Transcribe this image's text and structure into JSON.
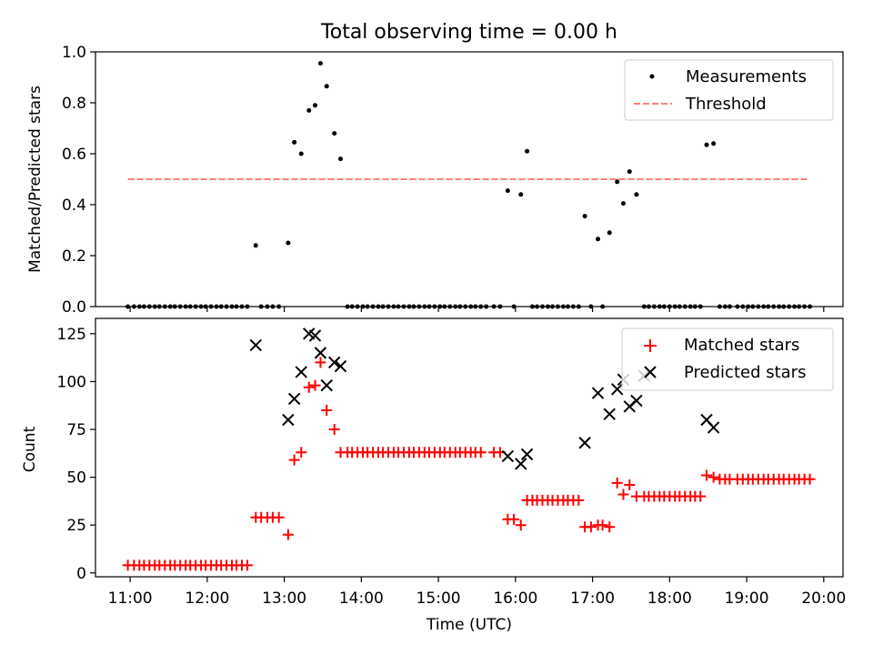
{
  "chart_data": [
    {
      "type": "scatter",
      "title": "Total observing time = 0.00 h",
      "xlabel": "",
      "ylabel": "Matched/Predicted stars",
      "ylim": [
        0.0,
        1.0
      ],
      "yticks": [
        "0.0",
        "0.2",
        "0.4",
        "0.6",
        "0.8",
        "1.0"
      ],
      "legend_position": "top-right",
      "series": [
        {
          "name": "Measurements",
          "kind": "points",
          "color": "#000000",
          "points": [
            [
              10.97,
              0
            ],
            [
              11.05,
              0
            ],
            [
              11.12,
              0
            ],
            [
              11.18,
              0
            ],
            [
              11.25,
              0
            ],
            [
              11.32,
              0
            ],
            [
              11.38,
              0
            ],
            [
              11.45,
              0
            ],
            [
              11.52,
              0
            ],
            [
              11.58,
              0
            ],
            [
              11.65,
              0
            ],
            [
              11.72,
              0
            ],
            [
              11.78,
              0
            ],
            [
              11.85,
              0
            ],
            [
              11.92,
              0
            ],
            [
              11.98,
              0
            ],
            [
              12.05,
              0
            ],
            [
              12.12,
              0
            ],
            [
              12.18,
              0
            ],
            [
              12.25,
              0
            ],
            [
              12.32,
              0
            ],
            [
              12.38,
              0
            ],
            [
              12.45,
              0
            ],
            [
              12.52,
              0
            ],
            [
              12.63,
              0.24
            ],
            [
              12.7,
              0
            ],
            [
              12.78,
              0
            ],
            [
              12.85,
              0
            ],
            [
              12.93,
              0
            ],
            [
              13.05,
              0.25
            ],
            [
              13.13,
              0.645
            ],
            [
              13.22,
              0.6
            ],
            [
              13.32,
              0.77
            ],
            [
              13.4,
              0.79
            ],
            [
              13.47,
              0.955
            ],
            [
              13.55,
              0.865
            ],
            [
              13.65,
              0.68
            ],
            [
              13.73,
              0.58
            ],
            [
              13.82,
              0
            ],
            [
              13.88,
              0
            ],
            [
              13.95,
              0
            ],
            [
              14.02,
              0
            ],
            [
              14.08,
              0
            ],
            [
              14.15,
              0
            ],
            [
              14.22,
              0
            ],
            [
              14.28,
              0
            ],
            [
              14.35,
              0
            ],
            [
              14.42,
              0
            ],
            [
              14.48,
              0
            ],
            [
              14.55,
              0
            ],
            [
              14.62,
              0
            ],
            [
              14.68,
              0
            ],
            [
              14.75,
              0
            ],
            [
              14.82,
              0
            ],
            [
              14.88,
              0
            ],
            [
              14.95,
              0
            ],
            [
              15.02,
              0
            ],
            [
              15.08,
              0
            ],
            [
              15.15,
              0
            ],
            [
              15.22,
              0
            ],
            [
              15.28,
              0
            ],
            [
              15.35,
              0
            ],
            [
              15.42,
              0
            ],
            [
              15.48,
              0
            ],
            [
              15.55,
              0
            ],
            [
              15.62,
              0
            ],
            [
              15.72,
              0
            ],
            [
              15.8,
              0
            ],
            [
              15.9,
              0.455
            ],
            [
              15.98,
              0
            ],
            [
              16.07,
              0.44
            ],
            [
              16.15,
              0.61
            ],
            [
              16.22,
              0
            ],
            [
              16.28,
              0
            ],
            [
              16.35,
              0
            ],
            [
              16.42,
              0
            ],
            [
              16.48,
              0
            ],
            [
              16.55,
              0
            ],
            [
              16.62,
              0
            ],
            [
              16.68,
              0
            ],
            [
              16.75,
              0
            ],
            [
              16.82,
              0
            ],
            [
              16.9,
              0.355
            ],
            [
              16.98,
              0
            ],
            [
              17.07,
              0.265
            ],
            [
              17.13,
              0
            ],
            [
              17.22,
              0.29
            ],
            [
              17.32,
              0.49
            ],
            [
              17.4,
              0.405
            ],
            [
              17.48,
              0.53
            ],
            [
              17.57,
              0.44
            ],
            [
              17.67,
              0
            ],
            [
              17.73,
              0
            ],
            [
              17.8,
              0
            ],
            [
              17.87,
              0
            ],
            [
              17.93,
              0
            ],
            [
              18.0,
              0
            ],
            [
              18.07,
              0
            ],
            [
              18.13,
              0
            ],
            [
              18.2,
              0
            ],
            [
              18.27,
              0
            ],
            [
              18.33,
              0
            ],
            [
              18.4,
              0
            ],
            [
              18.48,
              0.635
            ],
            [
              18.57,
              0.64
            ],
            [
              18.65,
              0
            ],
            [
              18.72,
              0
            ],
            [
              18.78,
              0
            ],
            [
              18.88,
              0
            ],
            [
              18.95,
              0
            ],
            [
              19.02,
              0
            ],
            [
              19.08,
              0
            ],
            [
              19.15,
              0
            ],
            [
              19.22,
              0
            ],
            [
              19.28,
              0
            ],
            [
              19.35,
              0
            ],
            [
              19.42,
              0
            ],
            [
              19.48,
              0
            ],
            [
              19.55,
              0
            ],
            [
              19.62,
              0
            ],
            [
              19.68,
              0
            ],
            [
              19.75,
              0
            ],
            [
              19.82,
              0
            ]
          ]
        },
        {
          "name": "Threshold",
          "kind": "dashed-line",
          "color": "#ff7f7f",
          "x": [
            10.97,
            19.82
          ],
          "y": [
            0.5,
            0.5
          ]
        }
      ]
    },
    {
      "type": "scatter",
      "title": "",
      "xlabel": "Time (UTC)",
      "ylabel": "Count",
      "ylim": [
        -2,
        133
      ],
      "yticks": [
        "0",
        "25",
        "50",
        "75",
        "100",
        "125"
      ],
      "xlim": [
        10.55,
        20.25
      ],
      "xticks": [
        "11:00",
        "12:00",
        "13:00",
        "14:00",
        "15:00",
        "16:00",
        "17:00",
        "18:00",
        "19:00",
        "20:00"
      ],
      "legend_position": "top-right",
      "series": [
        {
          "name": "Matched stars",
          "kind": "plus",
          "color": "#ff0000",
          "points": [
            [
              10.97,
              4
            ],
            [
              11.05,
              4
            ],
            [
              11.12,
              4
            ],
            [
              11.18,
              4
            ],
            [
              11.25,
              4
            ],
            [
              11.32,
              4
            ],
            [
              11.38,
              4
            ],
            [
              11.45,
              4
            ],
            [
              11.52,
              4
            ],
            [
              11.58,
              4
            ],
            [
              11.65,
              4
            ],
            [
              11.72,
              4
            ],
            [
              11.78,
              4
            ],
            [
              11.85,
              4
            ],
            [
              11.92,
              4
            ],
            [
              11.98,
              4
            ],
            [
              12.05,
              4
            ],
            [
              12.12,
              4
            ],
            [
              12.18,
              4
            ],
            [
              12.25,
              4
            ],
            [
              12.32,
              4
            ],
            [
              12.38,
              4
            ],
            [
              12.45,
              4
            ],
            [
              12.52,
              4
            ],
            [
              12.63,
              29
            ],
            [
              12.7,
              29
            ],
            [
              12.78,
              29
            ],
            [
              12.85,
              29
            ],
            [
              12.93,
              29
            ],
            [
              13.05,
              20
            ],
            [
              13.13,
              59
            ],
            [
              13.22,
              63
            ],
            [
              13.32,
              97
            ],
            [
              13.4,
              98
            ],
            [
              13.47,
              110
            ],
            [
              13.55,
              85
            ],
            [
              13.65,
              75
            ],
            [
              13.73,
              63
            ],
            [
              13.82,
              63
            ],
            [
              13.88,
              63
            ],
            [
              13.95,
              63
            ],
            [
              14.02,
              63
            ],
            [
              14.08,
              63
            ],
            [
              14.15,
              63
            ],
            [
              14.22,
              63
            ],
            [
              14.28,
              63
            ],
            [
              14.35,
              63
            ],
            [
              14.42,
              63
            ],
            [
              14.48,
              63
            ],
            [
              14.55,
              63
            ],
            [
              14.62,
              63
            ],
            [
              14.68,
              63
            ],
            [
              14.75,
              63
            ],
            [
              14.82,
              63
            ],
            [
              14.88,
              63
            ],
            [
              14.95,
              63
            ],
            [
              15.02,
              63
            ],
            [
              15.08,
              63
            ],
            [
              15.15,
              63
            ],
            [
              15.22,
              63
            ],
            [
              15.28,
              63
            ],
            [
              15.35,
              63
            ],
            [
              15.42,
              63
            ],
            [
              15.48,
              63
            ],
            [
              15.55,
              63
            ],
            [
              15.72,
              63
            ],
            [
              15.8,
              63
            ],
            [
              15.9,
              28
            ],
            [
              15.98,
              28
            ],
            [
              16.07,
              25
            ],
            [
              16.15,
              38
            ],
            [
              16.22,
              38
            ],
            [
              16.28,
              38
            ],
            [
              16.35,
              38
            ],
            [
              16.42,
              38
            ],
            [
              16.48,
              38
            ],
            [
              16.55,
              38
            ],
            [
              16.62,
              38
            ],
            [
              16.68,
              38
            ],
            [
              16.75,
              38
            ],
            [
              16.82,
              38
            ],
            [
              16.9,
              24
            ],
            [
              16.98,
              24
            ],
            [
              17.07,
              25
            ],
            [
              17.13,
              25
            ],
            [
              17.22,
              24
            ],
            [
              17.32,
              47
            ],
            [
              17.4,
              41
            ],
            [
              17.48,
              46
            ],
            [
              17.57,
              40
            ],
            [
              17.67,
              40
            ],
            [
              17.73,
              40
            ],
            [
              17.8,
              40
            ],
            [
              17.87,
              40
            ],
            [
              17.93,
              40
            ],
            [
              18.0,
              40
            ],
            [
              18.07,
              40
            ],
            [
              18.13,
              40
            ],
            [
              18.2,
              40
            ],
            [
              18.27,
              40
            ],
            [
              18.33,
              40
            ],
            [
              18.4,
              40
            ],
            [
              18.48,
              51
            ],
            [
              18.57,
              50
            ],
            [
              18.65,
              49
            ],
            [
              18.72,
              49
            ],
            [
              18.78,
              49
            ],
            [
              18.88,
              49
            ],
            [
              18.95,
              49
            ],
            [
              19.02,
              49
            ],
            [
              19.08,
              49
            ],
            [
              19.15,
              49
            ],
            [
              19.22,
              49
            ],
            [
              19.28,
              49
            ],
            [
              19.35,
              49
            ],
            [
              19.42,
              49
            ],
            [
              19.48,
              49
            ],
            [
              19.55,
              49
            ],
            [
              19.62,
              49
            ],
            [
              19.68,
              49
            ],
            [
              19.75,
              49
            ],
            [
              19.82,
              49
            ]
          ]
        },
        {
          "name": "Predicted stars",
          "kind": "cross",
          "color": "#000000",
          "points": [
            [
              12.63,
              119
            ],
            [
              13.05,
              80
            ],
            [
              13.13,
              91
            ],
            [
              13.22,
              105
            ],
            [
              13.32,
              125
            ],
            [
              13.4,
              124
            ],
            [
              13.47,
              115
            ],
            [
              13.55,
              98
            ],
            [
              13.65,
              110
            ],
            [
              13.73,
              108
            ],
            [
              15.9,
              61
            ],
            [
              16.07,
              57
            ],
            [
              16.15,
              62
            ],
            [
              16.9,
              68
            ],
            [
              17.07,
              94
            ],
            [
              17.22,
              83
            ],
            [
              17.32,
              96
            ],
            [
              17.4,
              101
            ],
            [
              17.48,
              87
            ],
            [
              17.57,
              90
            ],
            [
              17.67,
              103
            ],
            [
              18.48,
              80
            ],
            [
              18.57,
              76
            ]
          ]
        }
      ]
    }
  ]
}
